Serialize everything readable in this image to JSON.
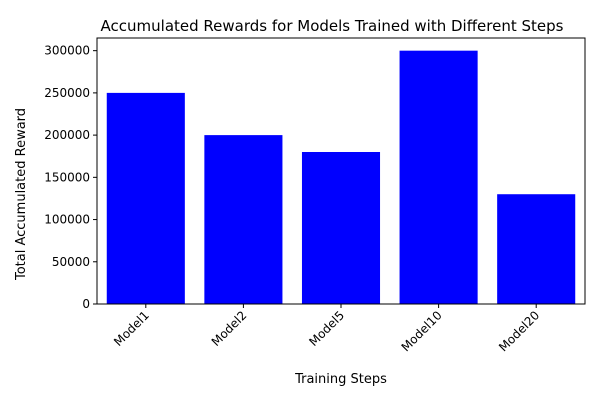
{
  "chart_data": {
    "type": "bar",
    "title": "Accumulated Rewards for Models Trained with Different Steps",
    "xlabel": "Training Steps",
    "ylabel": "Total Accumulated Reward",
    "categories": [
      "Model1",
      "Model2",
      "Model5",
      "Model10",
      "Model20"
    ],
    "values": [
      250000,
      200000,
      180000,
      300000,
      130000
    ],
    "ylim": [
      0,
      315000
    ],
    "yticks": [
      0,
      50000,
      100000,
      150000,
      200000,
      250000,
      300000
    ],
    "ytick_labels": [
      "0",
      "50000",
      "100000",
      "150000",
      "200000",
      "250000",
      "300000"
    ],
    "bar_color": "#0000ff",
    "grid": false,
    "legend": "none"
  }
}
